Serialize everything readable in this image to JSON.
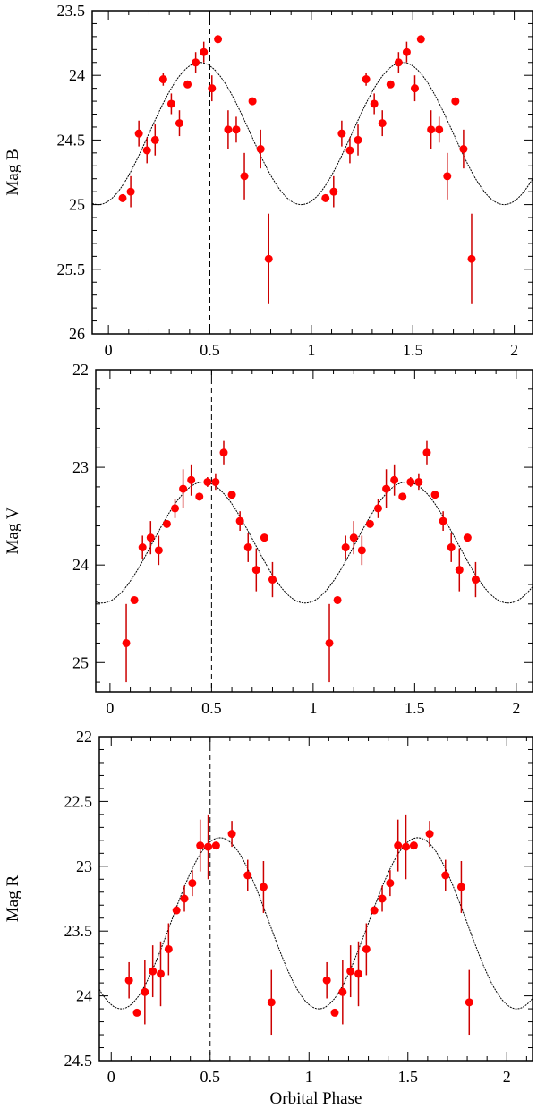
{
  "chart_data": [
    {
      "type": "scatter",
      "ylabel": "Mag B",
      "xlabel": "",
      "xlim": [
        -0.08,
        2.09
      ],
      "ylim": [
        23.5,
        26
      ],
      "y_inverted": true,
      "xticks": [
        "0",
        "0.5",
        "1",
        "1.5",
        "2"
      ],
      "yticks": [
        "23.5",
        "24",
        "24.5",
        "25",
        "25.5",
        "26"
      ],
      "marker_line_phase": 0.5,
      "model": {
        "mean": 24.45,
        "amplitude": 0.55,
        "peak_phase": 0.45
      },
      "points": [
        [
          0.07,
          24.95,
          0.03
        ],
        [
          0.11,
          24.9,
          0.12
        ],
        [
          0.15,
          24.45,
          0.1
        ],
        [
          0.19,
          24.58,
          0.1
        ],
        [
          0.23,
          24.5,
          0.12
        ],
        [
          0.27,
          24.03,
          0.05
        ],
        [
          0.31,
          24.22,
          0.08
        ],
        [
          0.35,
          24.37,
          0.1
        ],
        [
          0.39,
          24.07,
          0
        ],
        [
          0.43,
          23.9,
          0.08
        ],
        [
          0.47,
          23.82,
          0.08
        ],
        [
          0.51,
          24.1,
          0.1
        ],
        [
          0.54,
          23.72,
          0
        ],
        [
          0.59,
          24.42,
          0.15
        ],
        [
          0.63,
          24.42,
          0.1
        ],
        [
          0.67,
          24.78,
          0.18
        ],
        [
          0.71,
          24.2,
          0
        ],
        [
          0.75,
          24.57,
          0.15
        ],
        [
          0.79,
          25.42,
          0.35
        ]
      ]
    },
    {
      "type": "scatter",
      "ylabel": "Mag V",
      "xlabel": "",
      "xlim": [
        -0.07,
        2.08
      ],
      "ylim": [
        22,
        25.3
      ],
      "y_inverted": true,
      "xticks": [
        "0",
        "0.5",
        "1",
        "1.5",
        "2"
      ],
      "yticks": [
        "22",
        "23",
        "24",
        "25"
      ],
      "marker_line_phase": 0.5,
      "model": {
        "mean": 23.77,
        "amplitude": 0.62,
        "peak_phase": 0.46
      },
      "points": [
        [
          0.08,
          24.8,
          0.4
        ],
        [
          0.12,
          24.36,
          0.02
        ],
        [
          0.16,
          23.82,
          0.12
        ],
        [
          0.2,
          23.72,
          0.17
        ],
        [
          0.24,
          23.85,
          0.15
        ],
        [
          0.28,
          23.58,
          0.02
        ],
        [
          0.32,
          23.42,
          0.1
        ],
        [
          0.36,
          23.22,
          0.2
        ],
        [
          0.4,
          23.13,
          0.16
        ],
        [
          0.44,
          23.3,
          0.02
        ],
        [
          0.48,
          23.15,
          0.05
        ],
        [
          0.52,
          23.15,
          0.08
        ],
        [
          0.56,
          22.85,
          0.12
        ],
        [
          0.6,
          23.28,
          0.02
        ],
        [
          0.64,
          23.55,
          0.1
        ],
        [
          0.68,
          23.82,
          0.15
        ],
        [
          0.72,
          24.05,
          0.22
        ],
        [
          0.76,
          23.72,
          0.02
        ],
        [
          0.8,
          24.15,
          0.18
        ]
      ]
    },
    {
      "type": "scatter",
      "ylabel": "Mag R",
      "xlabel": "Orbital Phase",
      "xlim": [
        -0.06,
        2.13
      ],
      "ylim": [
        22,
        24.5
      ],
      "y_inverted": true,
      "xticks": [
        "0",
        "0.5",
        "1",
        "1.5",
        "2"
      ],
      "yticks": [
        "22",
        "22.5",
        "23",
        "23.5",
        "24",
        "24.5"
      ],
      "marker_line_phase": 0.5,
      "model": {
        "mean": 23.44,
        "amplitude": 0.66,
        "peak_phase": 0.55
      },
      "points": [
        [
          0.09,
          23.88,
          0.14
        ],
        [
          0.13,
          24.13,
          0.02
        ],
        [
          0.17,
          23.97,
          0.25
        ],
        [
          0.21,
          23.81,
          0.2
        ],
        [
          0.25,
          23.83,
          0.25
        ],
        [
          0.29,
          23.64,
          0.2
        ],
        [
          0.33,
          23.34,
          0.02
        ],
        [
          0.37,
          23.25,
          0.1
        ],
        [
          0.41,
          23.13,
          0.1
        ],
        [
          0.45,
          22.84,
          0.2
        ],
        [
          0.49,
          22.85,
          0.25
        ],
        [
          0.53,
          22.84,
          0.02
        ],
        [
          0.61,
          22.75,
          0.1
        ],
        [
          0.69,
          23.07,
          0.12
        ],
        [
          0.77,
          23.16,
          0.2
        ],
        [
          0.81,
          24.05,
          0.25
        ]
      ]
    }
  ],
  "colors": {
    "points": "#ff0000",
    "errorbars": "#cc0000",
    "model": "#000000"
  }
}
